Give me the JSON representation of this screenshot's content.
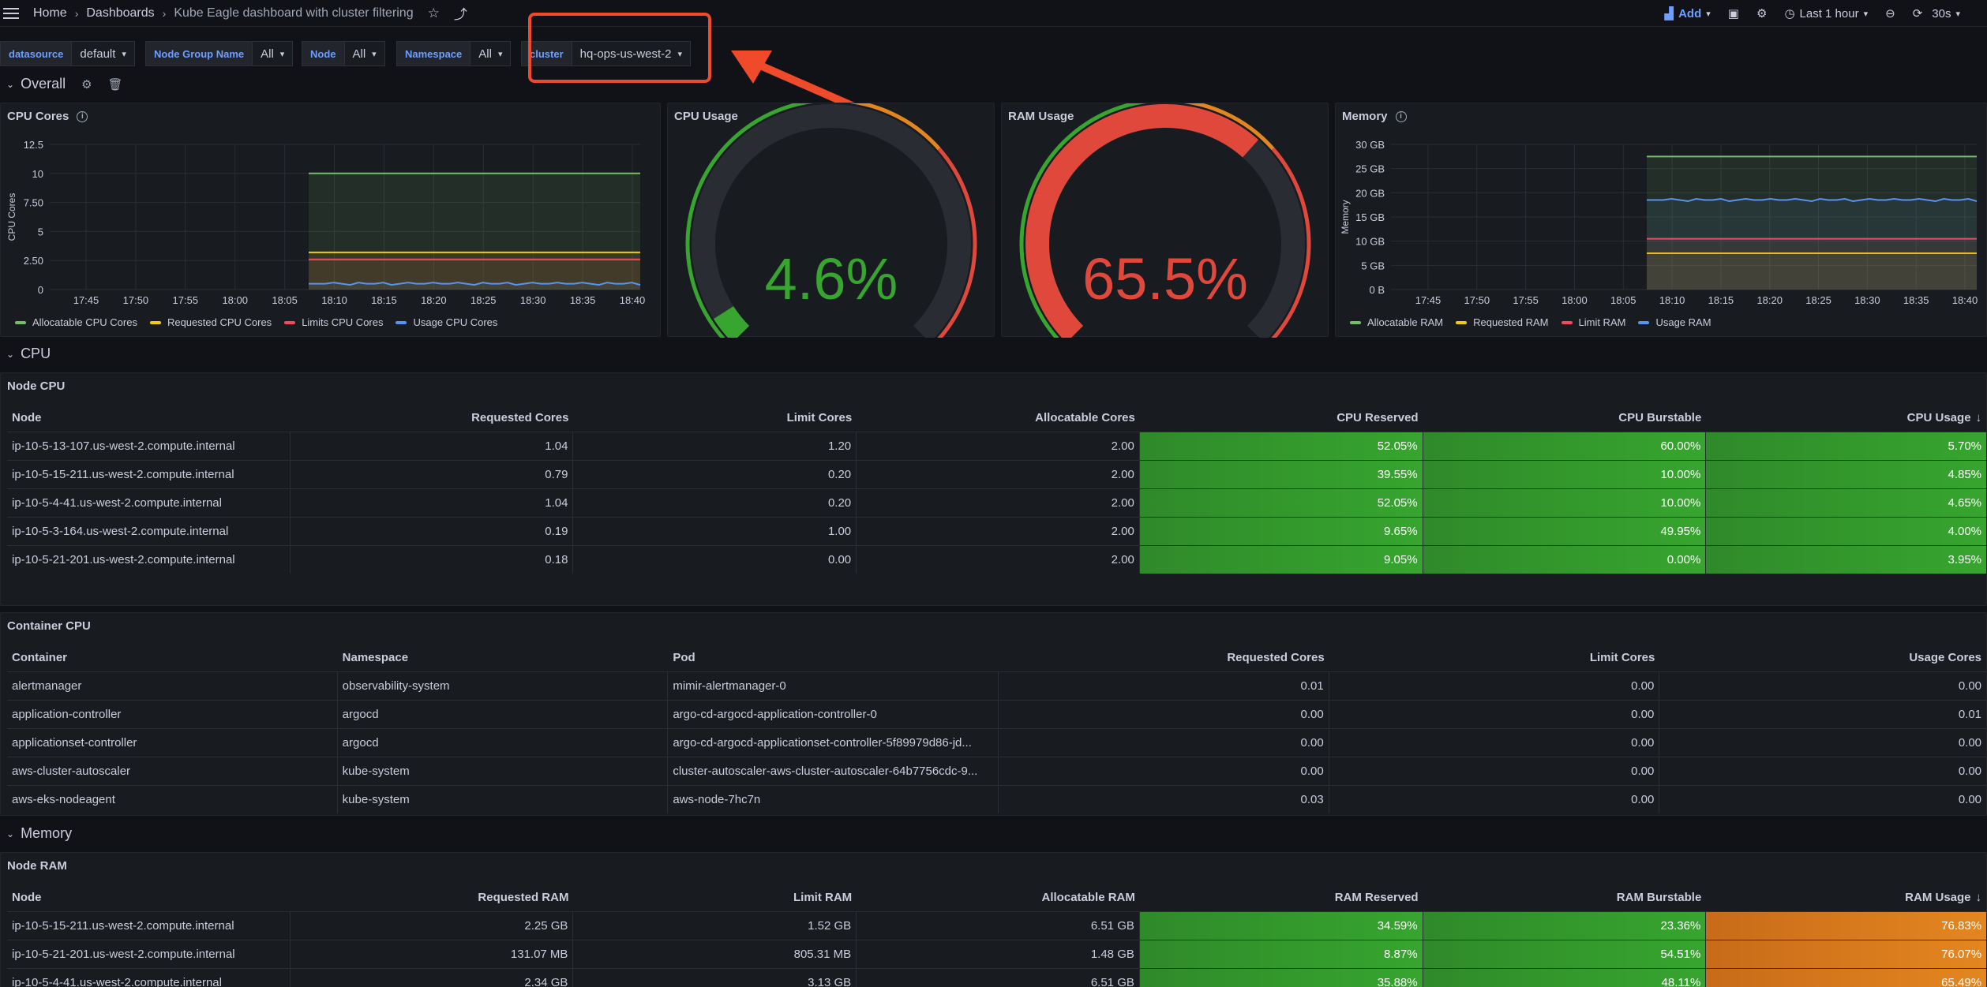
{
  "nav": {
    "breadcrumb": [
      "Home",
      "Dashboards",
      "Kube Eagle dashboard with cluster filtering"
    ],
    "add_label": "Add",
    "time_range": "Last 1 hour",
    "refresh": "30s"
  },
  "variables": [
    {
      "label": "datasource",
      "value": "default"
    },
    {
      "label": "Node Group Name",
      "value": "All"
    },
    {
      "label": "Node",
      "value": "All"
    },
    {
      "label": "Namespace",
      "value": "All"
    },
    {
      "label": "cluster",
      "value": "hq-ops-us-west-2"
    }
  ],
  "rows": {
    "overall": "Overall",
    "cpu": "CPU",
    "memory": "Memory"
  },
  "panels": {
    "cpu_cores": {
      "title": "CPU Cores"
    },
    "cpu_usage": {
      "title": "CPU Usage",
      "value": "4.6%",
      "fraction": 0.046,
      "color": "#37a52f"
    },
    "ram_usage": {
      "title": "RAM Usage",
      "value": "65.5%",
      "fraction": 0.655,
      "color": "#e0483c"
    },
    "memory": {
      "title": "Memory"
    }
  },
  "chart_data": [
    {
      "type": "line",
      "title": "CPU Cores",
      "ylabel": "CPU Cores",
      "ylim": [
        0,
        12.5
      ],
      "yticks": [
        "0",
        "2.50",
        "5",
        "7.50",
        "10",
        "12.5"
      ],
      "xticks": [
        "17:45",
        "17:50",
        "17:55",
        "18:00",
        "18:05",
        "18:10",
        "18:15",
        "18:20",
        "18:25",
        "18:30",
        "18:35",
        "18:40"
      ],
      "series": [
        {
          "name": "Allocatable CPU Cores",
          "color": "#73bf69",
          "value": 10
        },
        {
          "name": "Requested CPU Cores",
          "color": "#f2cc0c",
          "value": 3.2
        },
        {
          "name": "Limits CPU Cores",
          "color": "#f2495c",
          "value": 2.6
        },
        {
          "name": "Usage CPU Cores",
          "color": "#5794f2",
          "value": 0.5
        }
      ]
    },
    {
      "type": "line",
      "title": "Memory",
      "ylabel": "Memory",
      "ylim": [
        0,
        30
      ],
      "yticks": [
        "0 B",
        "5 GB",
        "10 GB",
        "15 GB",
        "20 GB",
        "25 GB",
        "30 GB"
      ],
      "xticks": [
        "17:45",
        "17:50",
        "17:55",
        "18:00",
        "18:05",
        "18:10",
        "18:15",
        "18:20",
        "18:25",
        "18:30",
        "18:35",
        "18:40"
      ],
      "series": [
        {
          "name": "Allocatable RAM",
          "color": "#73bf69",
          "value": 27.5
        },
        {
          "name": "Requested RAM",
          "color": "#f2cc0c",
          "value": 7.5
        },
        {
          "name": "Limit RAM",
          "color": "#f2495c",
          "value": 10.5
        },
        {
          "name": "Usage RAM",
          "color": "#5794f2",
          "value": 18.5
        }
      ]
    }
  ],
  "node_cpu": {
    "title": "Node CPU",
    "headers": [
      "Node",
      "Requested Cores",
      "Limit Cores",
      "Allocatable Cores",
      "CPU Reserved",
      "CPU Burstable",
      "CPU Usage"
    ],
    "rows": [
      [
        "ip-10-5-13-107.us-west-2.compute.internal",
        "1.04",
        "1.20",
        "2.00",
        "52.05%",
        "60.00%",
        "5.70%"
      ],
      [
        "ip-10-5-15-211.us-west-2.compute.internal",
        "0.79",
        "0.20",
        "2.00",
        "39.55%",
        "10.00%",
        "4.85%"
      ],
      [
        "ip-10-5-4-41.us-west-2.compute.internal",
        "1.04",
        "0.20",
        "2.00",
        "52.05%",
        "10.00%",
        "4.65%"
      ],
      [
        "ip-10-5-3-164.us-west-2.compute.internal",
        "0.19",
        "1.00",
        "2.00",
        "9.65%",
        "49.95%",
        "4.00%"
      ],
      [
        "ip-10-5-21-201.us-west-2.compute.internal",
        "0.18",
        "0.00",
        "2.00",
        "9.05%",
        "0.00%",
        "3.95%"
      ]
    ]
  },
  "container_cpu": {
    "title": "Container CPU",
    "headers": [
      "Container",
      "Namespace",
      "Pod",
      "Requested Cores",
      "Limit Cores",
      "Usage Cores"
    ],
    "rows": [
      [
        "alertmanager",
        "observability-system",
        "mimir-alertmanager-0",
        "0.01",
        "0.00",
        "0.00"
      ],
      [
        "application-controller",
        "argocd",
        "argo-cd-argocd-application-controller-0",
        "0.00",
        "0.00",
        "0.01"
      ],
      [
        "applicationset-controller",
        "argocd",
        "argo-cd-argocd-applicationset-controller-5f89979d86-jd...",
        "0.00",
        "0.00",
        "0.00"
      ],
      [
        "aws-cluster-autoscaler",
        "kube-system",
        "cluster-autoscaler-aws-cluster-autoscaler-64b7756cdc-9...",
        "0.00",
        "0.00",
        "0.00"
      ],
      [
        "aws-eks-nodeagent",
        "kube-system",
        "aws-node-7hc7n",
        "0.03",
        "0.00",
        "0.00"
      ]
    ]
  },
  "node_ram": {
    "title": "Node RAM",
    "headers": [
      "Node",
      "Requested RAM",
      "Limit RAM",
      "Allocatable RAM",
      "RAM Reserved",
      "RAM Burstable",
      "RAM Usage"
    ],
    "rows": [
      [
        "ip-10-5-15-211.us-west-2.compute.internal",
        "2.25 GB",
        "1.52 GB",
        "6.51 GB",
        "34.59%",
        "23.36%",
        "76.83%"
      ],
      [
        "ip-10-5-21-201.us-west-2.compute.internal",
        "131.07 MB",
        "805.31 MB",
        "1.48 GB",
        "8.87%",
        "54.51%",
        "76.07%"
      ],
      [
        "ip-10-5-4-41.us-west-2.compute.internal",
        "2.34 GB",
        "3.13 GB",
        "6.51 GB",
        "35.88%",
        "48.11%",
        "65.49%"
      ]
    ]
  }
}
